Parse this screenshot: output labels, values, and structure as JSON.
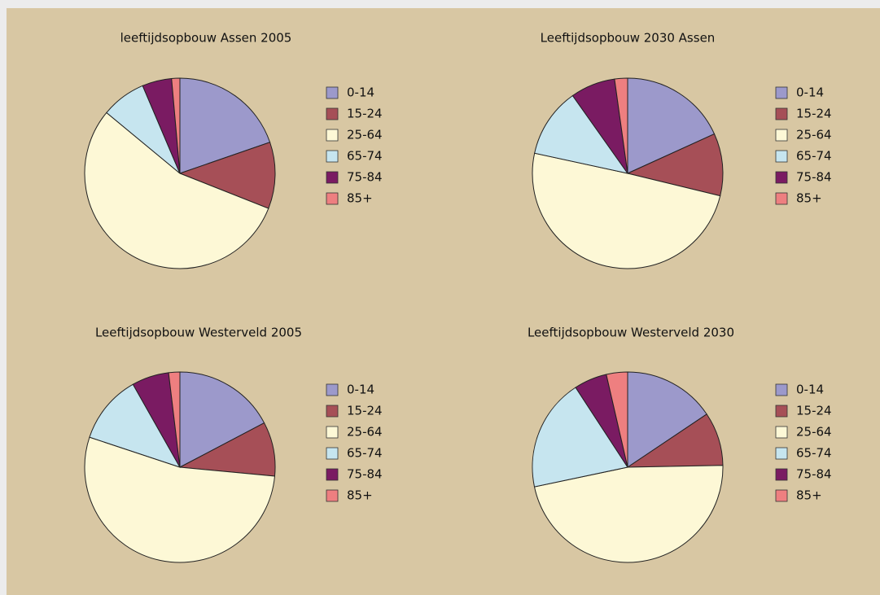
{
  "chart_data": [
    {
      "type": "pie",
      "title": "leeftijdsopbouw Assen  2005",
      "categories": [
        "0-14",
        "15-24",
        "25-64",
        "65-74",
        "75-84",
        "85+"
      ],
      "values": [
        19.7,
        11.3,
        55.0,
        7.6,
        5.0,
        1.4
      ],
      "colors": [
        "#9c99cb",
        "#a64f57",
        "#fdf8d6",
        "#c6e5ef",
        "#7a1b62",
        "#ee7f80"
      ]
    },
    {
      "type": "pie",
      "title": "Leeftijdsopbouw  2030  Assen",
      "categories": [
        "0-14",
        "15-24",
        "25-64",
        "65-74",
        "75-84",
        "85+"
      ],
      "values": [
        18.2,
        10.6,
        49.6,
        11.8,
        7.6,
        2.2
      ],
      "colors": [
        "#9c99cb",
        "#a64f57",
        "#fdf8d6",
        "#c6e5ef",
        "#7a1b62",
        "#ee7f80"
      ]
    },
    {
      "type": "pie",
      "title": "Leeftijdsopbouw  Westerveld  2005",
      "categories": [
        "0-14",
        "15-24",
        "25-64",
        "65-74",
        "75-84",
        "85+"
      ],
      "values": [
        17.3,
        9.2,
        53.6,
        11.7,
        6.3,
        1.9
      ],
      "colors": [
        "#9c99cb",
        "#a64f57",
        "#fdf8d6",
        "#c6e5ef",
        "#7a1b62",
        "#ee7f80"
      ]
    },
    {
      "type": "pie",
      "title": "Leeftijdsopbouw  Westerveld  2030",
      "categories": [
        "0-14",
        "15-24",
        "25-64",
        "65-74",
        "75-84",
        "85+"
      ],
      "values": [
        15.6,
        9.1,
        47.0,
        19.1,
        5.6,
        3.6
      ],
      "colors": [
        "#9c99cb",
        "#a64f57",
        "#fdf8d6",
        "#c6e5ef",
        "#7a1b62",
        "#ee7f80"
      ]
    }
  ]
}
